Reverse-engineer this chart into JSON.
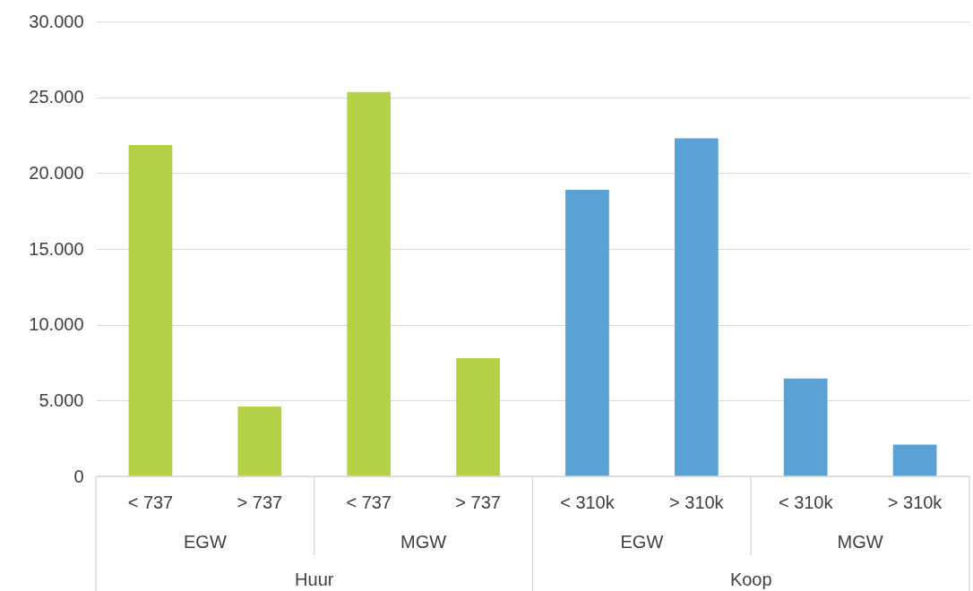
{
  "chart_data": {
    "type": "bar",
    "categories": [
      "< 737",
      "> 737",
      "< 737",
      "> 737",
      "< 310k",
      "> 310k",
      "< 310k",
      "> 310k"
    ],
    "values": [
      21850,
      4600,
      25350,
      7800,
      18900,
      22300,
      6450,
      2100
    ],
    "colors": [
      "#b5d147",
      "#b5d147",
      "#b5d147",
      "#b5d147",
      "#5aa2d6",
      "#5aa2d6",
      "#5aa2d6",
      "#5aa2d6"
    ],
    "ylim": [
      0,
      30000
    ],
    "yticks": [
      {
        "value": 0,
        "label": "0"
      },
      {
        "value": 5000,
        "label": "5.000"
      },
      {
        "value": 10000,
        "label": "10.000"
      },
      {
        "value": 15000,
        "label": "15.000"
      },
      {
        "value": 20000,
        "label": "20.000"
      },
      {
        "value": 25000,
        "label": "25.000"
      },
      {
        "value": 30000,
        "label": "30.000"
      }
    ],
    "grid": "y",
    "annotations": [
      "EGW",
      "MGW",
      "EGW",
      "MGW",
      "Huur",
      "Koop"
    ]
  }
}
